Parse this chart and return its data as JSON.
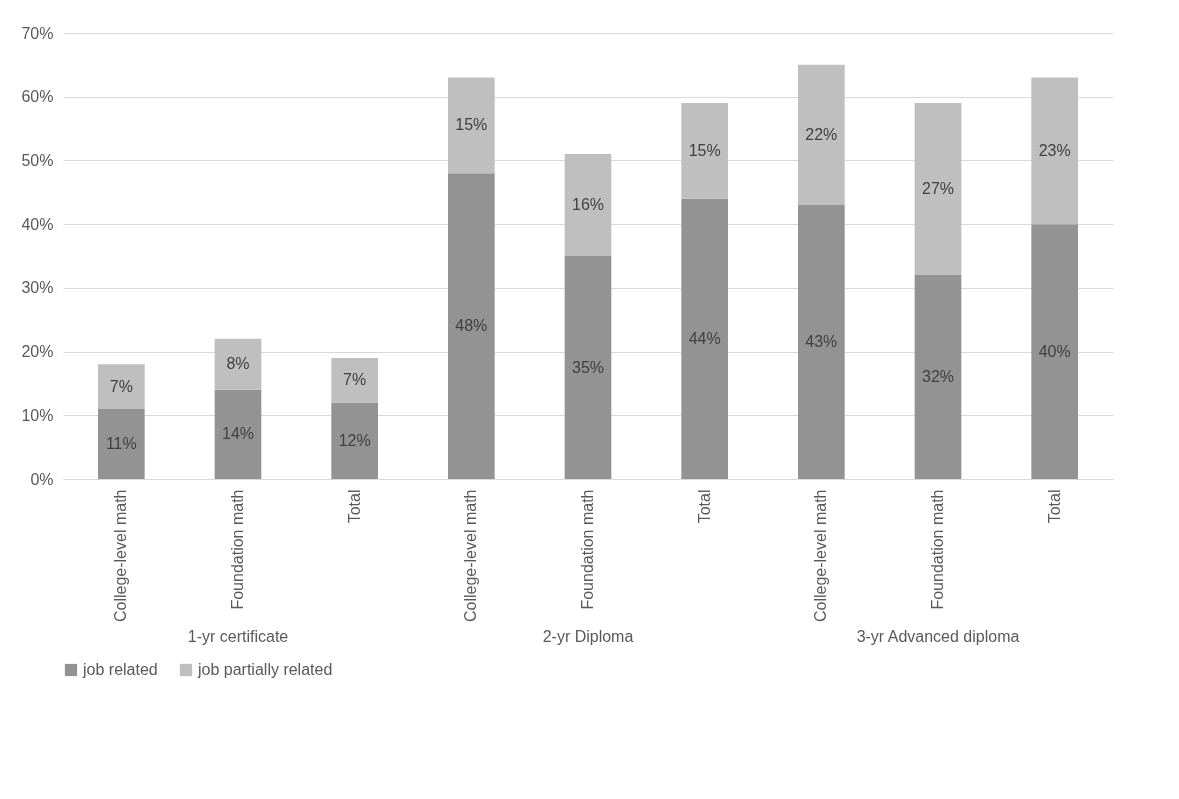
{
  "chart_data": {
    "type": "bar",
    "stacked": true,
    "categories": [
      "College-level math",
      "Foundation math",
      "Total",
      "College-level math",
      "Foundation math",
      "Total",
      "College-level math",
      "Foundation math",
      "Total"
    ],
    "annotations": [
      "1-yr certificate",
      "2-yr Diploma",
      "3-yr Advanced diploma"
    ],
    "series": [
      {
        "name": "job related",
        "color": "#939393",
        "values": [
          11,
          14,
          12,
          48,
          35,
          44,
          43,
          32,
          40
        ],
        "value_labels": [
          "11%",
          "14%",
          "12%",
          "48%",
          "35%",
          "44%",
          "43%",
          "32%",
          "40%"
        ]
      },
      {
        "name": "job partially related",
        "color": "#bfbfbf",
        "values": [
          7,
          8,
          7,
          15,
          16,
          15,
          22,
          27,
          23
        ],
        "value_labels": [
          "7%",
          "8%",
          "7%",
          "15%",
          "16%",
          "15%",
          "22%",
          "27%",
          "23%"
        ]
      }
    ],
    "ylim": [
      0,
      70
    ],
    "yticks": [
      {
        "value": 0,
        "label": "0%"
      },
      {
        "value": 10,
        "label": "10%"
      },
      {
        "value": 20,
        "label": "20%"
      },
      {
        "value": 30,
        "label": "30%"
      },
      {
        "value": 40,
        "label": "40%"
      },
      {
        "value": 50,
        "label": "50%"
      },
      {
        "value": 60,
        "label": "60%"
      },
      {
        "value": 70,
        "label": "70%"
      }
    ],
    "grid": "y",
    "legend": "bottom"
  }
}
